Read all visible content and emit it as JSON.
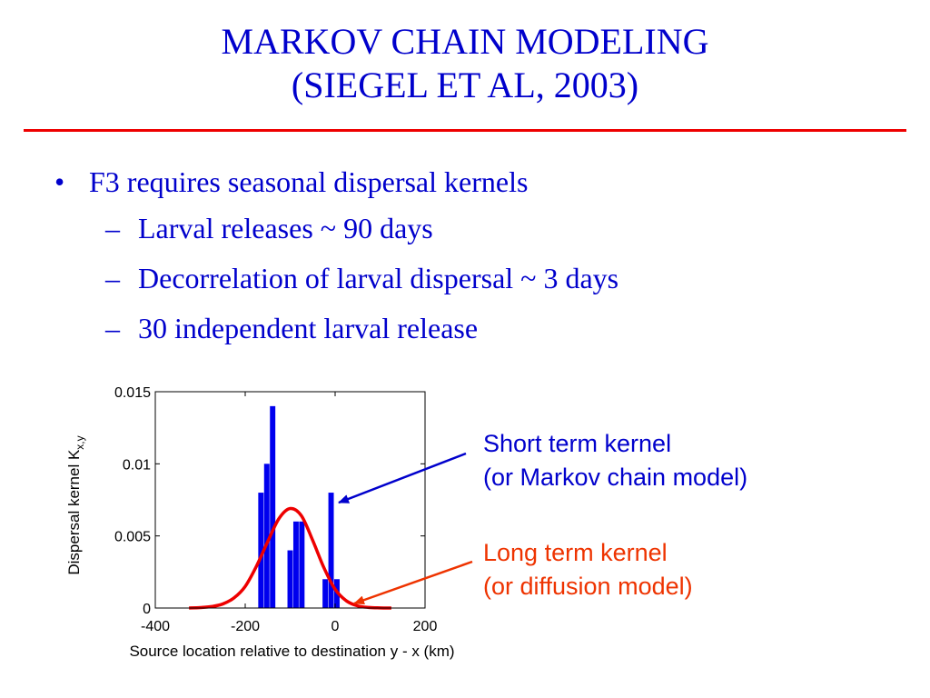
{
  "slide": {
    "title_line1": "MARKOV CHAIN MODELING",
    "title_line2": "(SIEGEL ET AL, 2003)",
    "bullet_main": "F3 requires seasonal dispersal kernels",
    "bullet_marker": "•",
    "sub_marker": "–",
    "sub_bullets": [
      "Larval releases ~ 90 days",
      "Decorrelation of larval dispersal ~ 3 days",
      "30 independent larval release"
    ],
    "annotation_short_line1": "Short term kernel",
    "annotation_short_line2": "(or Markov chain model)",
    "annotation_long_line1": "Long term kernel",
    "annotation_long_line2": "(or diffusion model)",
    "colors": {
      "text": "#0000cc",
      "rule": "#ee0000",
      "bars": "#0000ee",
      "curve": "#ee0000",
      "long_annotation": "#ee3300"
    }
  },
  "chart_data": {
    "type": "bar",
    "xlabel": "Source location relative to destination y - x (km)",
    "ylabel_main": "Dispersal kernel K",
    "ylabel_sub": "x,y",
    "xlim": [
      -400,
      200
    ],
    "ylim": [
      0,
      0.015
    ],
    "xticks": [
      -400,
      -200,
      0,
      200
    ],
    "xtick_labels": [
      "-400",
      "-200",
      "0",
      "200"
    ],
    "yticks": [
      0,
      0.005,
      0.01,
      0.015
    ],
    "ytick_labels": [
      "0",
      "0.005",
      "0.01",
      "0.015"
    ],
    "bar_width_km": 12,
    "series": [
      {
        "type": "bar",
        "x": [
          -165,
          -152,
          -139,
          -100,
          -87,
          -74,
          -22,
          -9,
          4
        ],
        "values": [
          0.008,
          0.01,
          0.014,
          0.004,
          0.006,
          0.006,
          0.002,
          0.008,
          0.002
        ]
      },
      {
        "type": "line",
        "x": [
          -325,
          -300,
          -275,
          -250,
          -225,
          -200,
          -175,
          -150,
          -125,
          -100,
          -75,
          -50,
          -25,
          0,
          25,
          50,
          75,
          100,
          125
        ],
        "values": [
          0.0,
          3e-05,
          0.0001,
          0.00028,
          0.0007,
          0.0015,
          0.0029,
          0.0046,
          0.0062,
          0.0069,
          0.0064,
          0.0047,
          0.0028,
          0.0013,
          0.0005,
          0.00015,
          4e-05,
          1e-05,
          0.0
        ]
      }
    ],
    "grid": false,
    "legend": "none"
  }
}
